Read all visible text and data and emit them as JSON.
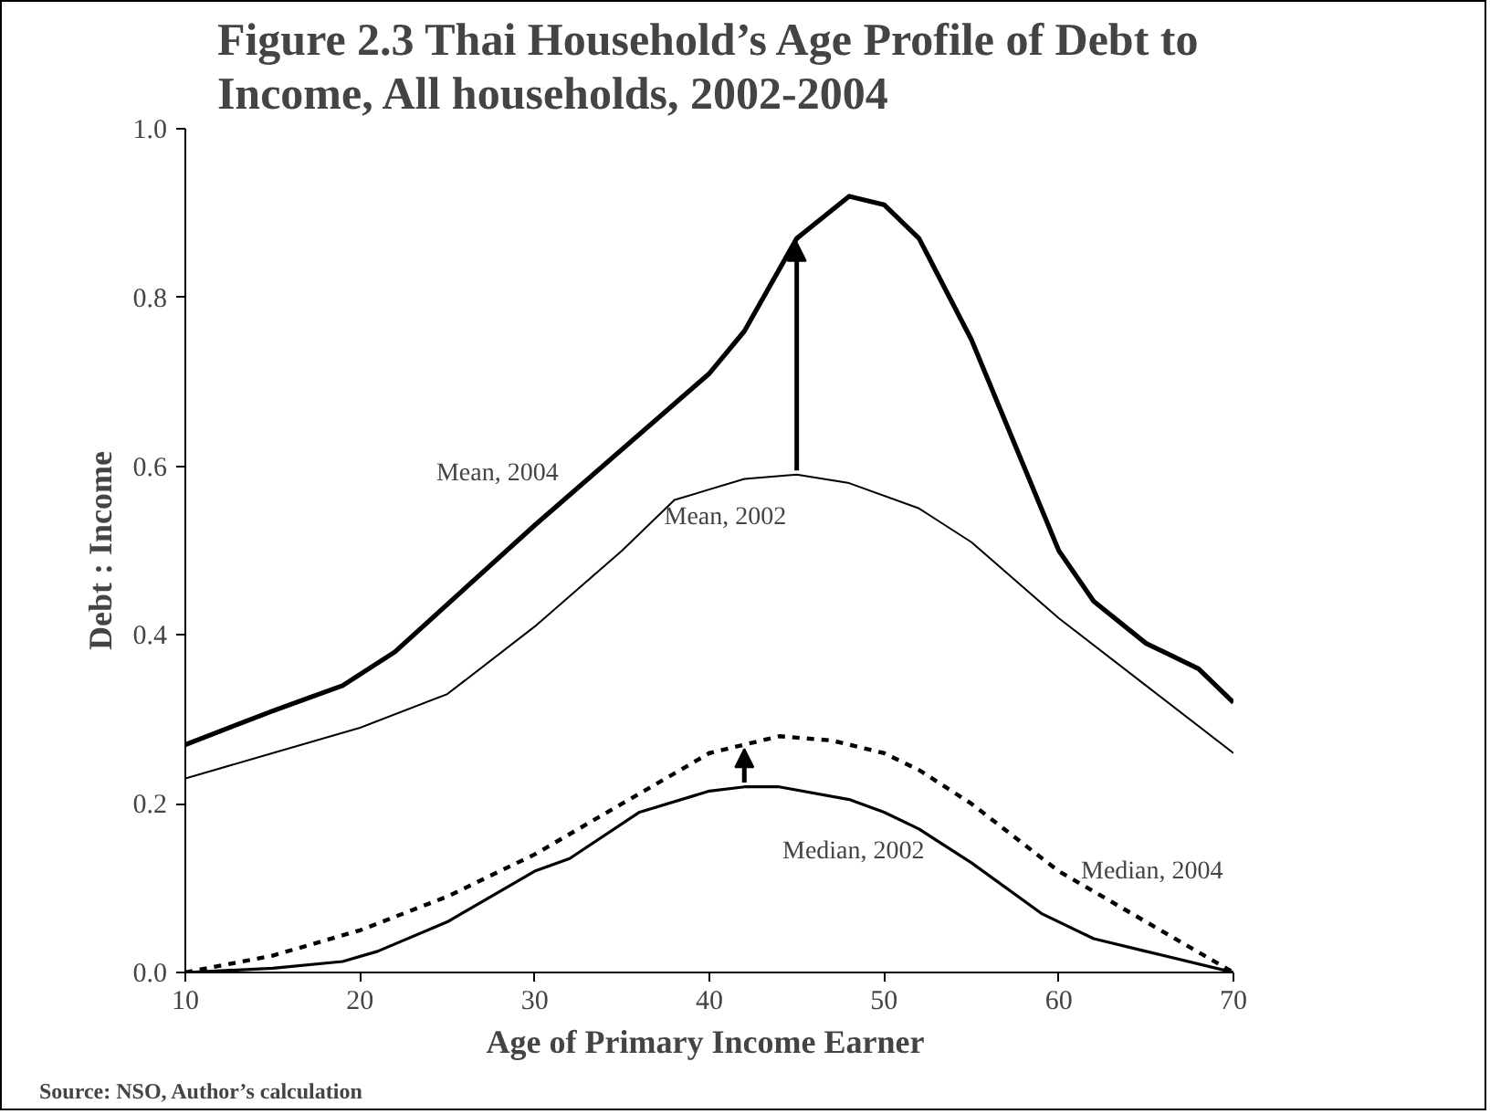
{
  "chart_data": {
    "type": "line",
    "title": "Figure 2.3 Thai Household’s Age Profile of Debt to\nIncome,  All households, 2002-2004",
    "xlabel": "Age of Primary Income  Earner",
    "ylabel": "Debt : Income",
    "xlim": [
      10,
      70
    ],
    "xticks": [
      10,
      20,
      30,
      40,
      50,
      60,
      70
    ],
    "ylim": [
      0,
      1
    ],
    "yticks": [
      {
        "value": 0,
        "label": "0.0"
      },
      {
        "value": 0.2,
        "label": "0.2"
      },
      {
        "value": 0.4,
        "label": "0.4"
      },
      {
        "value": 0.6,
        "label": "0.6"
      },
      {
        "value": 0.8,
        "label": "0.8"
      },
      {
        "value": 1,
        "label": "1.0"
      }
    ],
    "grid": false,
    "legend": false,
    "series": [
      {
        "name": "Mean, 2004",
        "color": "#000000",
        "line_style": "solid",
        "x": [
          10,
          15,
          19,
          22,
          30,
          40,
          42,
          45,
          48,
          50,
          52,
          55,
          58,
          60,
          62,
          65,
          68,
          70
        ],
        "values": [
          0.27,
          0.31,
          0.34,
          0.38,
          0.53,
          0.71,
          0.76,
          0.87,
          0.92,
          0.91,
          0.87,
          0.75,
          0.6,
          0.5,
          0.44,
          0.39,
          0.36,
          0.32
        ]
      },
      {
        "name": "Mean, 2002",
        "color": "#000000",
        "line_style": "solid",
        "x": [
          10,
          15,
          20,
          25,
          30,
          35,
          38,
          42,
          45,
          48,
          52,
          55,
          60,
          65,
          70
        ],
        "values": [
          0.23,
          0.26,
          0.29,
          0.33,
          0.41,
          0.5,
          0.56,
          0.585,
          0.59,
          0.58,
          0.55,
          0.51,
          0.42,
          0.34,
          0.26
        ]
      },
      {
        "name": "Median, 2004",
        "color": "#000000",
        "line_style": "dashed",
        "x": [
          10,
          15,
          20,
          25,
          30,
          35,
          40,
          44,
          47,
          50,
          52,
          55,
          60,
          65,
          70
        ],
        "values": [
          0,
          0.02,
          0.05,
          0.09,
          0.14,
          0.2,
          0.26,
          0.28,
          0.275,
          0.26,
          0.24,
          0.2,
          0.12,
          0.06,
          0
        ]
      },
      {
        "name": "Median, 2002",
        "color": "#000000",
        "line_style": "solid",
        "x": [
          10,
          15,
          19,
          21,
          25,
          30,
          32,
          36,
          40,
          42,
          44,
          48,
          50,
          52,
          55,
          59,
          62,
          65,
          70
        ],
        "values": [
          0,
          0.005,
          0.013,
          0.025,
          0.06,
          0.12,
          0.135,
          0.19,
          0.215,
          0.22,
          0.22,
          0.205,
          0.19,
          0.17,
          0.13,
          0.07,
          0.04,
          0.025,
          0
        ]
      }
    ],
    "annotations": [
      "Source: NSO, Author’s calculation"
    ]
  }
}
